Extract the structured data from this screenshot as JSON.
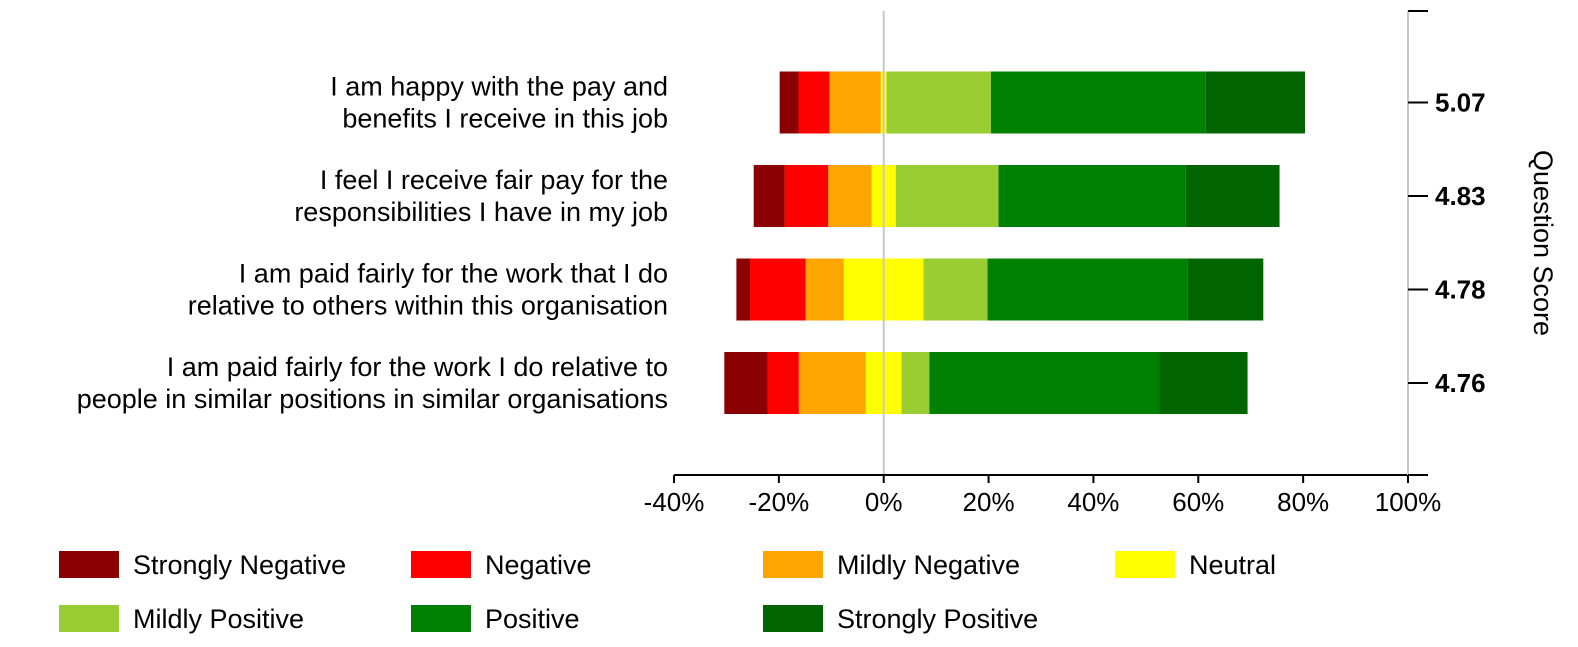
{
  "chart_data": {
    "type": "bar",
    "orientation": "horizontal",
    "stacked": true,
    "diverging": true,
    "xlim": [
      -40,
      100
    ],
    "xticks": [
      -40,
      -20,
      0,
      20,
      40,
      60,
      80,
      100
    ],
    "xtick_labels": [
      "-40%",
      "-20%",
      "0%",
      "20%",
      "40%",
      "60%",
      "80%",
      "100%"
    ],
    "secondary_ylabel": "Question Score",
    "grid": false,
    "legend_position": "bottom",
    "categories": [
      {
        "lines": [
          "I am happy with the pay and",
          "benefits I receive in this job"
        ],
        "score": "5.07"
      },
      {
        "lines": [
          "I feel I receive fair pay for the",
          "responsibilities I have in my job"
        ],
        "score": "4.83"
      },
      {
        "lines": [
          "I am paid fairly for the work that I do",
          "relative to others within this organisation"
        ],
        "score": "4.78"
      },
      {
        "lines": [
          "I am paid fairly for the work I do relative to",
          "people in similar positions in similar organisations"
        ],
        "score": "4.76"
      }
    ],
    "series": [
      {
        "name": "Strongly Negative",
        "color": "#8b0000",
        "side": "negative",
        "values": [
          3.6,
          5.9,
          2.6,
          8.3
        ]
      },
      {
        "name": "Negative",
        "color": "#ff0000",
        "side": "negative",
        "values": [
          5.9,
          8.3,
          10.6,
          5.9
        ]
      },
      {
        "name": "Mildly Negative",
        "color": "#ffa500",
        "side": "negative",
        "values": [
          9.8,
          8.3,
          7.3,
          12.8
        ]
      },
      {
        "name": "Neutral",
        "color": "#ffff00",
        "side": "center",
        "values": [
          1.1,
          4.6,
          15.2,
          6.8
        ]
      },
      {
        "name": "Mildly Positive",
        "color": "#9acd32",
        "side": "positive",
        "values": [
          19.9,
          19.6,
          12.2,
          5.3
        ]
      },
      {
        "name": "Positive",
        "color": "#008000",
        "side": "positive",
        "values": [
          41.0,
          35.7,
          38.1,
          43.9
        ]
      },
      {
        "name": "Strongly Positive",
        "color": "#006400",
        "side": "positive",
        "values": [
          18.9,
          17.9,
          14.5,
          16.8
        ]
      }
    ]
  }
}
